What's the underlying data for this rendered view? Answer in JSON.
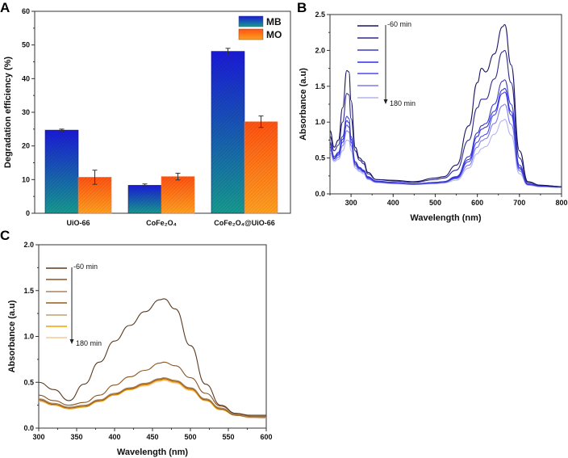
{
  "panels": {
    "a": "A",
    "b": "B",
    "c": "C"
  },
  "chart_data": [
    {
      "type": "bar",
      "panel": "A",
      "title": "",
      "xlabel": "",
      "ylabel": "Degradation efficiency (%)",
      "ylim": [
        0,
        60
      ],
      "yticks": [
        0,
        10,
        20,
        30,
        40,
        50,
        60
      ],
      "categories": [
        "UiO-66",
        "CoFe₂O₄",
        "CoFe₂O₄@UiO-66"
      ],
      "series": [
        {
          "name": "MB",
          "values": [
            24.7,
            8.3,
            48.1
          ],
          "errors": [
            0.3,
            0.4,
            0.9
          ],
          "colors": [
            "#1a1ad6",
            "#169a8e"
          ]
        },
        {
          "name": "MO",
          "values": [
            10.7,
            10.9,
            27.2
          ],
          "errors": [
            2.1,
            1.0,
            1.7
          ],
          "colors": [
            "#ff5212",
            "#ffa020"
          ]
        }
      ],
      "legend": "top-right"
    },
    {
      "type": "line",
      "panel": "B",
      "xlabel": "Wavelength (nm)",
      "ylabel": "Absorbance (a.u)",
      "xlim": [
        250,
        800
      ],
      "ylim": [
        0,
        2.5
      ],
      "xticks": [
        300,
        400,
        500,
        600,
        700,
        800
      ],
      "yticks": [
        0.0,
        0.5,
        1.0,
        1.5,
        2.0,
        2.5
      ],
      "legend_start": "-60 min",
      "legend_end": "180 min",
      "x": [
        250,
        260,
        270,
        280,
        290,
        295,
        300,
        310,
        320,
        330,
        340,
        360,
        400,
        450,
        500,
        520,
        550,
        580,
        600,
        610,
        620,
        640,
        660,
        665,
        680,
        700,
        720,
        750,
        800
      ],
      "series": [
        {
          "color": "#1b1464",
          "values": [
            0.88,
            0.65,
            0.75,
            1.2,
            1.72,
            1.7,
            1.3,
            0.65,
            0.5,
            0.45,
            0.3,
            0.2,
            0.19,
            0.17,
            0.22,
            0.24,
            0.4,
            0.95,
            1.55,
            1.75,
            1.7,
            1.95,
            2.33,
            2.36,
            1.8,
            0.6,
            0.17,
            0.12,
            0.1
          ]
        },
        {
          "color": "#2e2a8c",
          "values": [
            0.8,
            0.6,
            0.68,
            1.0,
            1.4,
            1.38,
            1.05,
            0.6,
            0.47,
            0.42,
            0.28,
            0.2,
            0.18,
            0.16,
            0.2,
            0.22,
            0.33,
            0.75,
            1.2,
            1.32,
            1.32,
            1.6,
            1.98,
            2.0,
            1.55,
            0.5,
            0.16,
            0.12,
            0.1
          ]
        },
        {
          "color": "#3a3ac4",
          "values": [
            0.72,
            0.52,
            0.58,
            0.8,
            1.08,
            1.05,
            0.8,
            0.45,
            0.37,
            0.33,
            0.24,
            0.18,
            0.16,
            0.14,
            0.16,
            0.17,
            0.24,
            0.52,
            0.85,
            0.95,
            0.98,
            1.25,
            1.57,
            1.59,
            1.25,
            0.4,
            0.14,
            0.11,
            0.1
          ]
        },
        {
          "color": "#2f2fe8",
          "values": [
            0.7,
            0.5,
            0.56,
            0.76,
            1.02,
            0.99,
            0.76,
            0.43,
            0.36,
            0.32,
            0.23,
            0.17,
            0.16,
            0.14,
            0.16,
            0.17,
            0.23,
            0.48,
            0.8,
            0.9,
            0.93,
            1.15,
            1.45,
            1.47,
            1.15,
            0.37,
            0.14,
            0.11,
            0.1
          ]
        },
        {
          "color": "#4a4aea",
          "values": [
            0.66,
            0.49,
            0.54,
            0.72,
            0.96,
            0.93,
            0.72,
            0.41,
            0.35,
            0.31,
            0.22,
            0.17,
            0.15,
            0.14,
            0.15,
            0.16,
            0.22,
            0.45,
            0.72,
            0.8,
            0.83,
            1.1,
            1.4,
            1.42,
            1.1,
            0.35,
            0.13,
            0.11,
            0.1
          ]
        },
        {
          "color": "#7c7cf0",
          "values": [
            0.62,
            0.47,
            0.51,
            0.67,
            0.88,
            0.86,
            0.67,
            0.39,
            0.33,
            0.3,
            0.21,
            0.16,
            0.15,
            0.13,
            0.15,
            0.16,
            0.21,
            0.4,
            0.65,
            0.74,
            0.77,
            0.98,
            1.23,
            1.25,
            0.97,
            0.32,
            0.13,
            0.1,
            0.09
          ]
        },
        {
          "color": "#b4b4f4",
          "values": [
            0.58,
            0.45,
            0.48,
            0.6,
            0.75,
            0.74,
            0.6,
            0.36,
            0.31,
            0.28,
            0.2,
            0.16,
            0.14,
            0.13,
            0.14,
            0.15,
            0.19,
            0.36,
            0.56,
            0.63,
            0.66,
            0.83,
            1.02,
            1.04,
            0.82,
            0.28,
            0.12,
            0.1,
            0.09
          ]
        }
      ]
    },
    {
      "type": "line",
      "panel": "C",
      "xlabel": "Wavelength (nm)",
      "ylabel": "Absorbance (a.u)",
      "xlim": [
        300,
        600
      ],
      "ylim": [
        0,
        2.0
      ],
      "xticks": [
        300,
        350,
        400,
        450,
        500,
        550,
        600
      ],
      "yticks": [
        0.0,
        0.5,
        1.0,
        1.5,
        2.0
      ],
      "legend_start": "-60 min",
      "legend_end": "180 min",
      "x": [
        300,
        320,
        340,
        360,
        380,
        400,
        420,
        440,
        460,
        465,
        480,
        500,
        520,
        540,
        560,
        580,
        600
      ],
      "series": [
        {
          "color": "#5a3a1e",
          "values": [
            0.5,
            0.42,
            0.3,
            0.48,
            0.72,
            0.95,
            1.12,
            1.27,
            1.4,
            1.41,
            1.3,
            0.9,
            0.48,
            0.25,
            0.16,
            0.14,
            0.14
          ]
        },
        {
          "color": "#8a5420",
          "values": [
            0.36,
            0.3,
            0.25,
            0.28,
            0.36,
            0.47,
            0.56,
            0.63,
            0.71,
            0.72,
            0.68,
            0.55,
            0.38,
            0.24,
            0.16,
            0.13,
            0.13
          ]
        },
        {
          "color": "#a8845a",
          "values": [
            0.32,
            0.27,
            0.23,
            0.25,
            0.31,
            0.38,
            0.44,
            0.49,
            0.54,
            0.55,
            0.52,
            0.44,
            0.32,
            0.22,
            0.15,
            0.12,
            0.12
          ]
        },
        {
          "color": "#9a5a18",
          "values": [
            0.31,
            0.26,
            0.22,
            0.24,
            0.3,
            0.37,
            0.43,
            0.48,
            0.53,
            0.54,
            0.51,
            0.43,
            0.31,
            0.21,
            0.14,
            0.12,
            0.12
          ]
        },
        {
          "color": "#c0a070",
          "values": [
            0.3,
            0.26,
            0.22,
            0.24,
            0.3,
            0.37,
            0.43,
            0.48,
            0.53,
            0.54,
            0.51,
            0.43,
            0.31,
            0.21,
            0.14,
            0.12,
            0.12
          ]
        },
        {
          "color": "#f5a000",
          "values": [
            0.3,
            0.25,
            0.21,
            0.23,
            0.29,
            0.36,
            0.42,
            0.47,
            0.52,
            0.53,
            0.5,
            0.42,
            0.3,
            0.2,
            0.14,
            0.12,
            0.11
          ]
        },
        {
          "color": "#f8c890",
          "values": [
            0.29,
            0.25,
            0.21,
            0.23,
            0.29,
            0.36,
            0.42,
            0.46,
            0.51,
            0.52,
            0.49,
            0.41,
            0.3,
            0.2,
            0.14,
            0.11,
            0.11
          ]
        }
      ]
    }
  ]
}
